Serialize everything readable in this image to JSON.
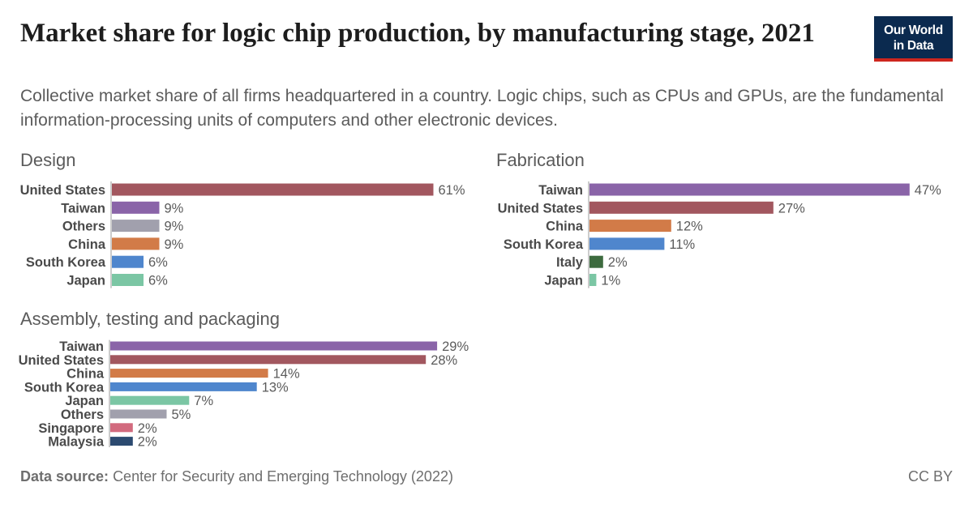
{
  "header": {
    "title": "Market share for logic chip production, by manufacturing stage, 2021",
    "subtitle": "Collective market share of all firms headquartered in a country. Logic chips, such as CPUs and GPUs, are the fundamental information-processing units of computers and other electronic devices.",
    "logo_line1": "Our World",
    "logo_line2": "in Data"
  },
  "footer": {
    "source_label": "Data source:",
    "source_text": "Center for Security and Emerging Technology (2022)",
    "license": "CC BY"
  },
  "colors": {
    "United States": "#a2575f",
    "Taiwan": "#8a64a8",
    "Others": "#a1a0ad",
    "China": "#d27b48",
    "South Korea": "#4f86cd",
    "Japan": "#7bc6a4",
    "Italy": "#3d6b3f",
    "Singapore": "#d26a7e",
    "Malaysia": "#2c4a70"
  },
  "chart_data": [
    {
      "type": "bar",
      "orientation": "horizontal",
      "title": "Design",
      "categories": [
        "United States",
        "Taiwan",
        "Others",
        "China",
        "South Korea",
        "Japan"
      ],
      "values": [
        61,
        9,
        9,
        9,
        6,
        6
      ],
      "unit": "%"
    },
    {
      "type": "bar",
      "orientation": "horizontal",
      "title": "Fabrication",
      "categories": [
        "Taiwan",
        "United States",
        "China",
        "South Korea",
        "Italy",
        "Japan"
      ],
      "values": [
        47,
        27,
        12,
        11,
        2,
        1
      ],
      "unit": "%"
    },
    {
      "type": "bar",
      "orientation": "horizontal",
      "title": "Assembly, testing and packaging",
      "categories": [
        "Taiwan",
        "United States",
        "China",
        "South Korea",
        "Japan",
        "Others",
        "Singapore",
        "Malaysia"
      ],
      "values": [
        29,
        28,
        14,
        13,
        7,
        5,
        2,
        2
      ],
      "unit": "%"
    }
  ]
}
